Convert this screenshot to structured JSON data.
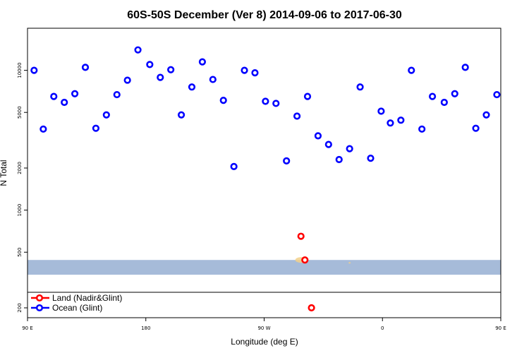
{
  "chart_data": {
    "type": "scatter",
    "title": "60S-50S December (Ver 8)   2014-09-06 to 2017-06-30",
    "xlabel": "Longitude (deg E)",
    "ylabel": "N Total",
    "yscale": "log",
    "xlim": [
      90,
      450
    ],
    "ylim": [
      170,
      20000
    ],
    "x_ticks": [
      {
        "value": 90,
        "label": "90 E"
      },
      {
        "value": 180,
        "label": "180"
      },
      {
        "value": 270,
        "label": "90 W"
      },
      {
        "value": 360,
        "label": "0"
      },
      {
        "value": 450,
        "label": "90 E"
      },
      {
        "value": 540,
        "label": "180"
      }
    ],
    "y_ticks": [
      {
        "value": 200,
        "label": "200"
      },
      {
        "value": 500,
        "label": "500"
      },
      {
        "value": 1000,
        "label": "1000"
      },
      {
        "value": 2000,
        "label": "2000"
      },
      {
        "value": 5000,
        "label": "5000"
      },
      {
        "value": 10000,
        "label": "10000"
      }
    ],
    "series": [
      {
        "name": "Land (Nadir&Glint)",
        "color": "#ff0000",
        "points": [
          {
            "x": 298,
            "y": 650
          },
          {
            "x": 301,
            "y": 440
          },
          {
            "x": 306,
            "y": 200
          }
        ]
      },
      {
        "name": "Ocean (Glint)",
        "color": "#0000ff",
        "points": [
          {
            "x": 95,
            "y": 10000
          },
          {
            "x": 102,
            "y": 3800
          },
          {
            "x": 110,
            "y": 6500
          },
          {
            "x": 118,
            "y": 5900
          },
          {
            "x": 126,
            "y": 6800
          },
          {
            "x": 134,
            "y": 10500
          },
          {
            "x": 142,
            "y": 3850
          },
          {
            "x": 150,
            "y": 4800
          },
          {
            "x": 158,
            "y": 6700
          },
          {
            "x": 166,
            "y": 8500
          },
          {
            "x": 174,
            "y": 14000
          },
          {
            "x": 183,
            "y": 11000
          },
          {
            "x": 191,
            "y": 8900
          },
          {
            "x": 199,
            "y": 10100
          },
          {
            "x": 207,
            "y": 4800
          },
          {
            "x": 215,
            "y": 7600
          },
          {
            "x": 223,
            "y": 11500
          },
          {
            "x": 231,
            "y": 8600
          },
          {
            "x": 239,
            "y": 6100
          },
          {
            "x": 247,
            "y": 2050
          },
          {
            "x": 255,
            "y": 10000
          },
          {
            "x": 263,
            "y": 9600
          },
          {
            "x": 271,
            "y": 6000
          },
          {
            "x": 279,
            "y": 5800
          },
          {
            "x": 287,
            "y": 2250
          },
          {
            "x": 295,
            "y": 4700
          },
          {
            "x": 303,
            "y": 6500
          },
          {
            "x": 311,
            "y": 3400
          },
          {
            "x": 319,
            "y": 2950
          },
          {
            "x": 327,
            "y": 2300
          },
          {
            "x": 335,
            "y": 2750
          },
          {
            "x": 343,
            "y": 7600
          },
          {
            "x": 351,
            "y": 2350
          },
          {
            "x": 359,
            "y": 5100
          },
          {
            "x": 366,
            "y": 4200
          },
          {
            "x": 374,
            "y": 4400
          },
          {
            "x": 382,
            "y": 10000
          },
          {
            "x": 390,
            "y": 3800
          },
          {
            "x": 398,
            "y": 6500
          },
          {
            "x": 407,
            "y": 5900
          },
          {
            "x": 415,
            "y": 6800
          },
          {
            "x": 423,
            "y": 10500
          },
          {
            "x": 431,
            "y": 3850
          },
          {
            "x": 439,
            "y": 4800
          },
          {
            "x": 447,
            "y": 6700
          }
        ]
      }
    ],
    "shaded_band": {
      "y_from": 345,
      "y_to": 440,
      "color": "#a6bbd9"
    },
    "legend_position": "bottom-left"
  }
}
